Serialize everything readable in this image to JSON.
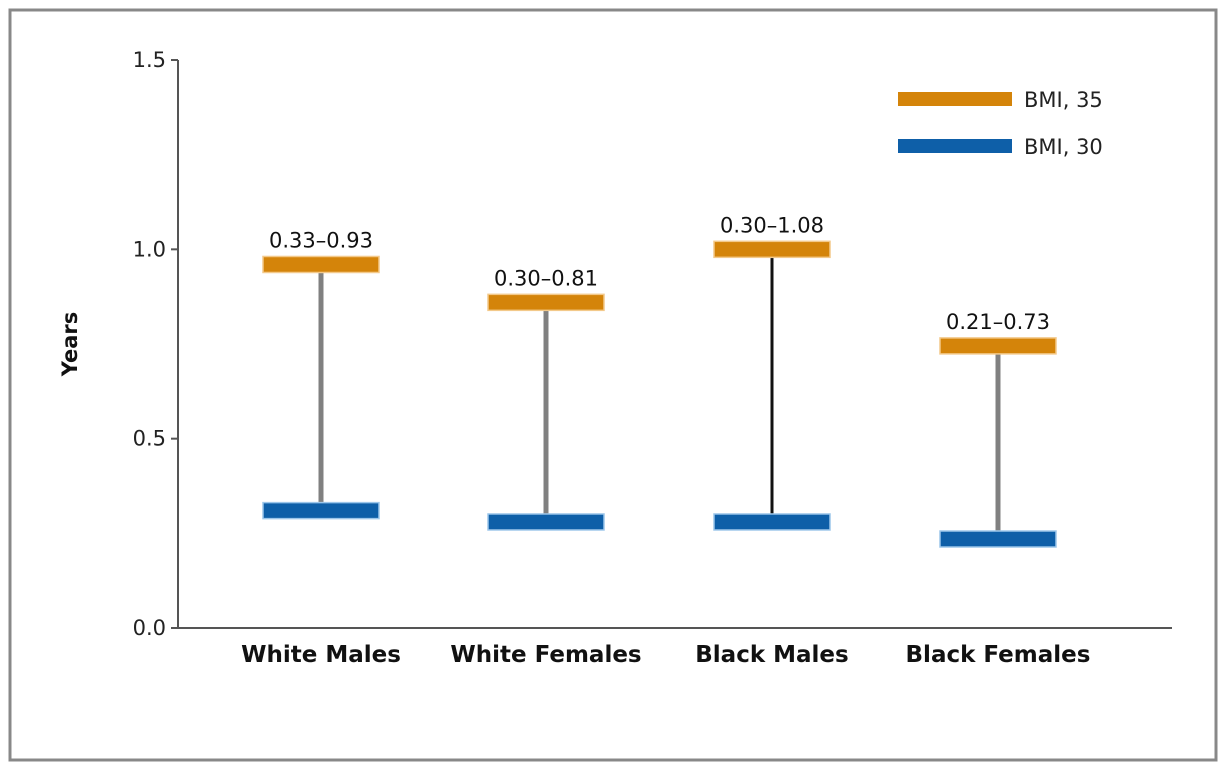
{
  "colors": {
    "bmi35": "#d4840a",
    "bmi30": "#0e5fa8",
    "connector": "#808080",
    "connector_highlight": "#111111",
    "axis": "#555555",
    "frame": "#888888"
  },
  "chart_data": {
    "type": "range",
    "title": "",
    "xlabel": "",
    "ylabel": "Years",
    "ylim": [
      0.0,
      1.5
    ],
    "yticks": [
      0.0,
      0.5,
      1.0,
      1.5
    ],
    "ytick_labels": [
      "0.0",
      "0.5",
      "1.0",
      "1.5"
    ],
    "grid": false,
    "legend_position": "top-right",
    "categories": [
      "White Males",
      "White Females",
      "Black Males",
      "Black Females"
    ],
    "series": [
      {
        "name": "BMI, 35",
        "color_key": "bmi35",
        "values": [
          0.96,
          0.86,
          1.0,
          0.745
        ]
      },
      {
        "name": "BMI, 30",
        "color_key": "bmi30",
        "values": [
          0.31,
          0.28,
          0.28,
          0.235
        ]
      }
    ],
    "range_labels": [
      "0.33–0.93",
      "0.30–0.81",
      "0.30–1.08",
      "0.21–0.73"
    ],
    "highlight_connector_index": 2
  }
}
